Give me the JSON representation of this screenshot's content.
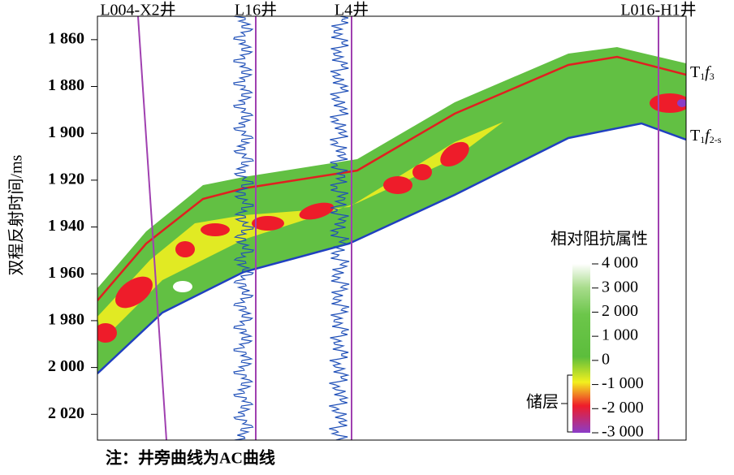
{
  "chart_data": {
    "type": "section",
    "y_label": "双程反射时间/ms",
    "ylim": [
      1850,
      2031
    ],
    "y_reversed": true,
    "yticks": [
      {
        "value": 1860,
        "label": "1 860"
      },
      {
        "value": 1880,
        "label": "1 880"
      },
      {
        "value": 1900,
        "label": "1 900"
      },
      {
        "value": 1920,
        "label": "1 920"
      },
      {
        "value": 1940,
        "label": "1 940"
      },
      {
        "value": 1960,
        "label": "1 960"
      },
      {
        "value": 1980,
        "label": "1 980"
      },
      {
        "value": 2000,
        "label": "2 000"
      },
      {
        "value": 2020,
        "label": "2 020"
      }
    ],
    "wells": [
      "L004-X2井",
      "L16井",
      "L4井",
      "L016-H1井"
    ],
    "horizon_labels": [
      [
        "T",
        "1",
        "f",
        "3"
      ],
      [
        "T",
        "1",
        "f",
        "2-s"
      ]
    ],
    "colorbar": {
      "title": "相对阻抗属性",
      "lim": [
        -3000,
        4000
      ],
      "ticks": [
        {
          "value": 4000,
          "label": "4 000"
        },
        {
          "value": 3000,
          "label": "3 000"
        },
        {
          "value": 2000,
          "label": "2 000"
        },
        {
          "value": 1000,
          "label": "1 000"
        },
        0,
        {
          "value": -1000,
          "label": "-1 000"
        },
        {
          "value": -2000,
          "label": "-2 000"
        },
        {
          "value": -3000,
          "label": "-3 000"
        }
      ]
    },
    "reservoir_label": "储层",
    "note": "注：井旁曲线为AC曲线"
  }
}
